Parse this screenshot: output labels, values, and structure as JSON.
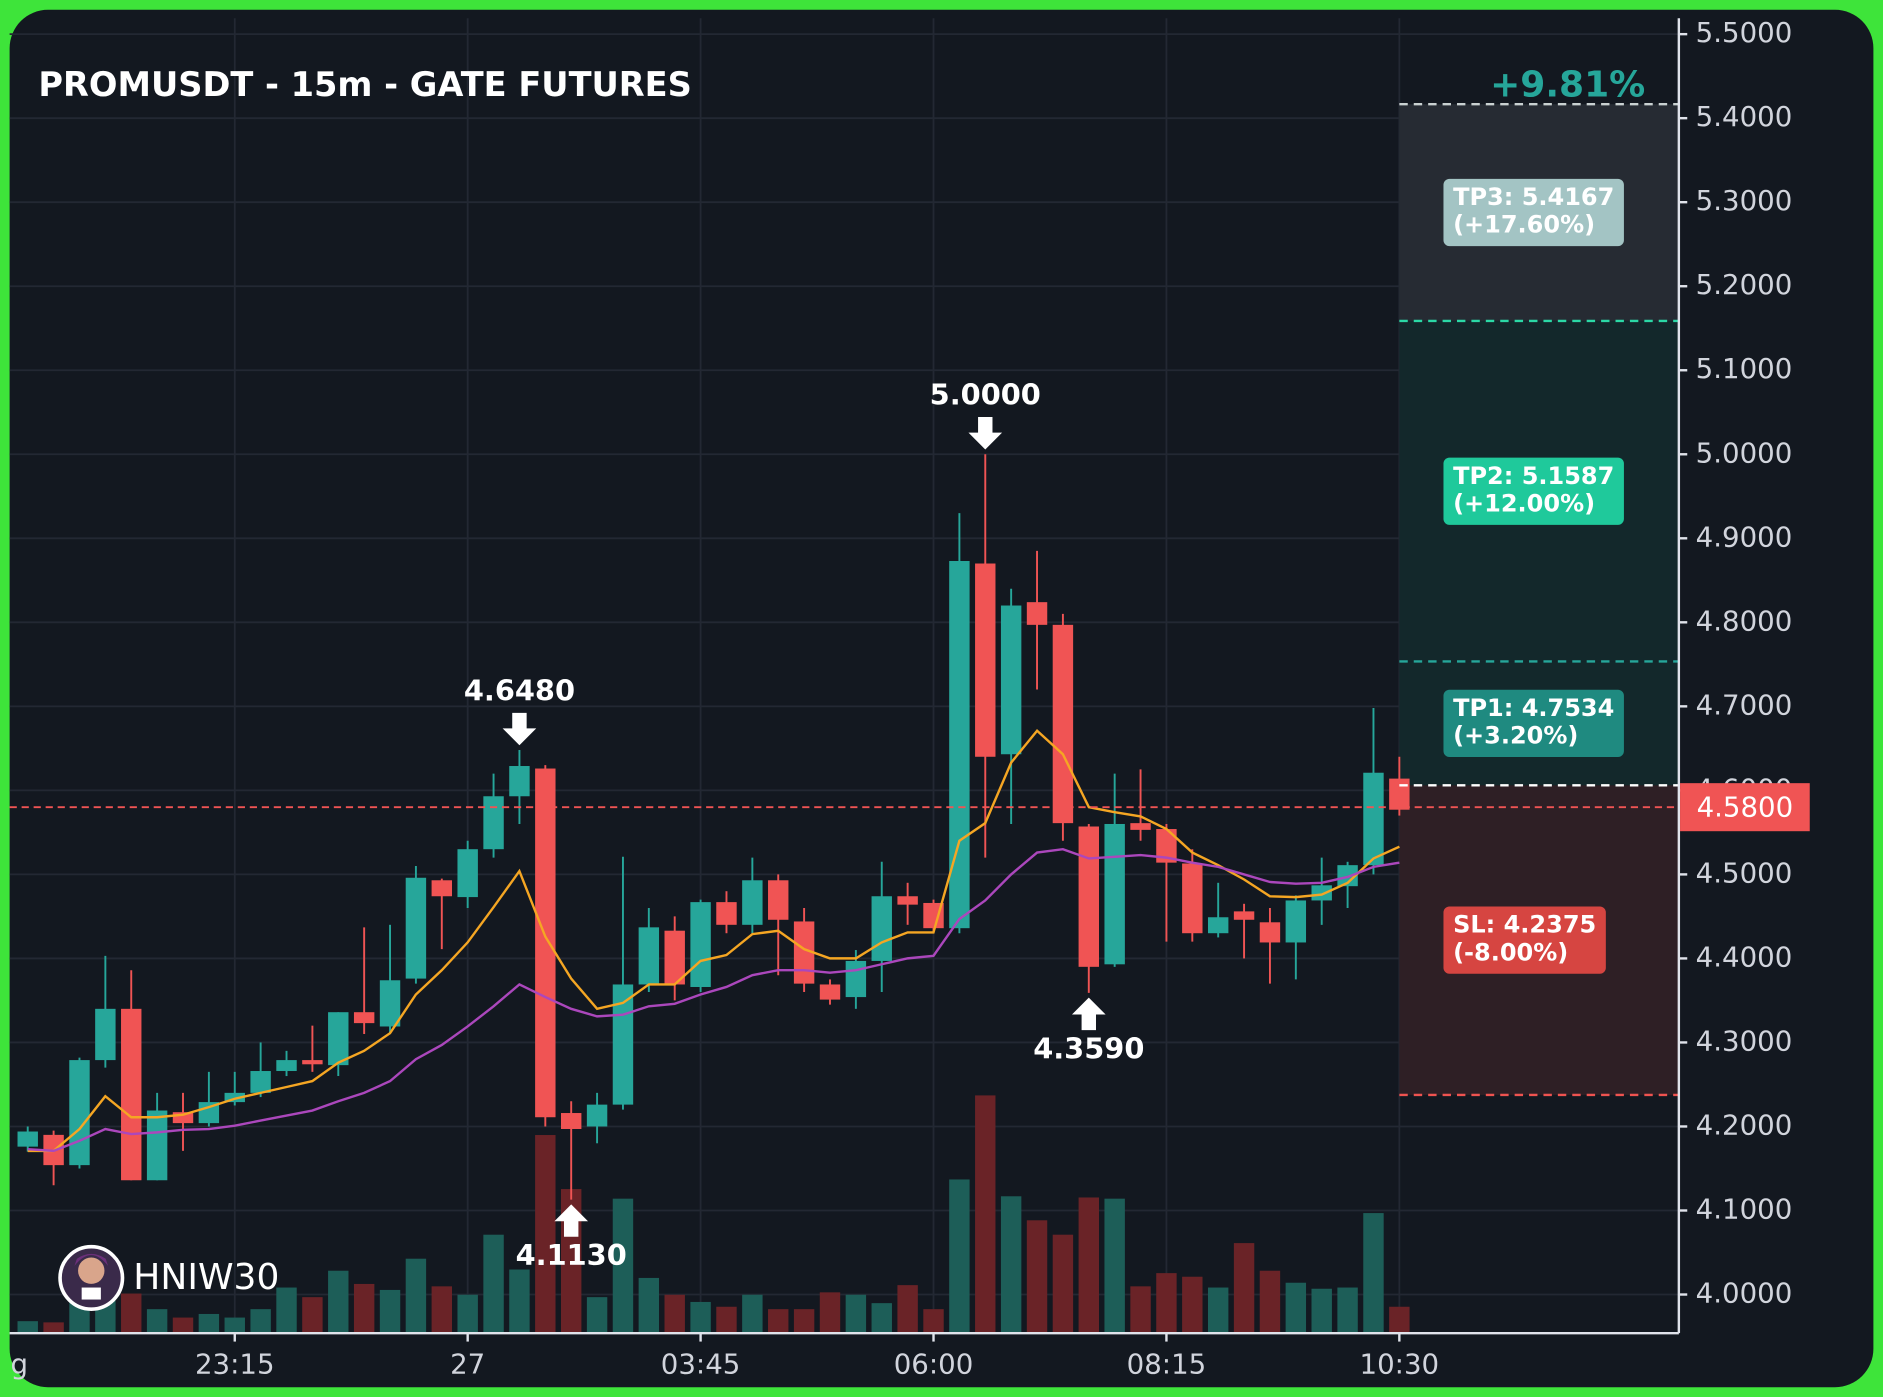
{
  "chart_data": {
    "type": "candlestick",
    "title": "PROMUSDT - 15m - GATE FUTURES",
    "watermark": "HNIW30",
    "up_color": "#26a69a",
    "down_color": "#f05454",
    "volume_up_color": "#1d5e58",
    "volume_down_color": "#6a2327",
    "open": [
      4.176,
      4.19,
      4.154,
      4.279,
      4.34,
      4.136,
      4.217,
      4.204,
      4.229,
      4.24,
      4.266,
      4.279,
      4.273,
      4.336,
      4.319,
      4.376,
      4.493,
      4.473,
      4.53,
      4.593,
      4.626,
      4.216,
      4.2,
      4.226,
      4.369,
      4.433,
      4.366,
      4.467,
      4.44,
      4.493,
      4.444,
      4.369,
      4.354,
      4.397,
      4.474,
      4.466,
      4.436,
      4.87,
      4.643,
      4.824,
      4.797,
      4.557,
      4.393,
      4.561,
      4.554,
      4.513,
      4.43,
      4.456,
      4.443,
      4.419,
      4.469,
      4.486,
      4.511,
      4.614
    ],
    "high": [
      4.2,
      4.195,
      4.282,
      4.403,
      4.386,
      4.24,
      4.24,
      4.265,
      4.265,
      4.3,
      4.29,
      4.32,
      4.336,
      4.437,
      4.44,
      4.51,
      4.495,
      4.54,
      4.62,
      4.648,
      4.63,
      4.23,
      4.24,
      4.521,
      4.46,
      4.45,
      4.47,
      4.48,
      4.52,
      4.5,
      4.46,
      4.375,
      4.41,
      4.515,
      4.49,
      4.47,
      4.93,
      5.0,
      4.84,
      4.885,
      4.81,
      4.56,
      4.62,
      4.625,
      4.56,
      4.53,
      4.49,
      4.465,
      4.46,
      4.475,
      4.52,
      4.515,
      4.698,
      4.64
    ],
    "low": [
      4.17,
      4.13,
      4.15,
      4.27,
      4.136,
      4.136,
      4.171,
      4.2,
      4.225,
      4.235,
      4.26,
      4.265,
      4.26,
      4.31,
      4.31,
      4.37,
      4.411,
      4.46,
      4.52,
      4.56,
      4.2,
      4.113,
      4.18,
      4.22,
      4.36,
      4.35,
      4.36,
      4.43,
      4.43,
      4.38,
      4.36,
      4.345,
      4.34,
      4.36,
      4.44,
      4.43,
      4.43,
      4.52,
      4.56,
      4.72,
      4.54,
      4.359,
      4.39,
      4.54,
      4.42,
      4.42,
      4.425,
      4.4,
      4.37,
      4.375,
      4.44,
      4.46,
      4.5,
      4.57
    ],
    "close": [
      4.194,
      4.154,
      4.279,
      4.34,
      4.136,
      4.219,
      4.204,
      4.229,
      4.24,
      4.266,
      4.279,
      4.274,
      4.336,
      4.323,
      4.374,
      4.496,
      4.474,
      4.53,
      4.593,
      4.629,
      4.211,
      4.197,
      4.226,
      4.369,
      4.437,
      4.369,
      4.467,
      4.44,
      4.493,
      4.446,
      4.37,
      4.351,
      4.397,
      4.474,
      4.464,
      4.436,
      4.873,
      4.64,
      4.82,
      4.797,
      4.561,
      4.39,
      4.56,
      4.553,
      4.514,
      4.43,
      4.449,
      4.446,
      4.419,
      4.469,
      4.487,
      4.511,
      4.621,
      4.577
    ],
    "volume": [
      10,
      9,
      30,
      30,
      33,
      20,
      13,
      16,
      13,
      20,
      38,
      30,
      52,
      41,
      36,
      62,
      39,
      32,
      82,
      53,
      165,
      120,
      30,
      112,
      46,
      32,
      26,
      22,
      32,
      20,
      20,
      34,
      32,
      25,
      40,
      20,
      128,
      198,
      114,
      94,
      82,
      113,
      112,
      39,
      50,
      47,
      38,
      75,
      52,
      42,
      37,
      38,
      100,
      22
    ],
    "volume_ylim": [
      0,
      1095
    ],
    "ma": [
      {
        "color": "#f5a623",
        "values": [
          4.171,
          4.171,
          4.197,
          4.236,
          4.211,
          4.211,
          4.214,
          4.223,
          4.233,
          4.24,
          4.247,
          4.254,
          4.276,
          4.29,
          4.311,
          4.357,
          4.386,
          4.419,
          4.461,
          4.504,
          4.426,
          4.376,
          4.34,
          4.347,
          4.369,
          4.369,
          4.397,
          4.404,
          4.429,
          4.433,
          4.411,
          4.4,
          4.4,
          4.419,
          4.431,
          4.431,
          4.54,
          4.561,
          4.633,
          4.671,
          4.643,
          4.58,
          4.574,
          4.569,
          4.554,
          4.526,
          4.511,
          4.494,
          4.474,
          4.473,
          4.476,
          4.49,
          4.519,
          4.533
        ]
      },
      {
        "color": "#ab47bc",
        "values": [
          4.173,
          4.171,
          4.183,
          4.197,
          4.191,
          4.193,
          4.196,
          4.197,
          4.201,
          4.207,
          4.213,
          4.219,
          4.23,
          4.24,
          4.254,
          4.28,
          4.297,
          4.319,
          4.343,
          4.369,
          4.354,
          4.34,
          4.331,
          4.333,
          4.343,
          4.346,
          4.357,
          4.366,
          4.38,
          4.386,
          4.386,
          4.383,
          4.386,
          4.393,
          4.4,
          4.403,
          4.447,
          4.469,
          4.5,
          4.526,
          4.53,
          4.519,
          4.521,
          4.523,
          4.52,
          4.514,
          4.509,
          4.5,
          4.491,
          4.489,
          4.49,
          4.497,
          4.509,
          4.514
        ]
      }
    ],
    "annotations": [
      {
        "at": 19,
        "kind": "high",
        "value": 4.648,
        "label": "4.6480"
      },
      {
        "at": 21,
        "kind": "low",
        "value": 4.113,
        "label": "4.1130"
      },
      {
        "at": 37,
        "kind": "high",
        "value": 5.0,
        "label": "5.0000"
      },
      {
        "at": 41,
        "kind": "low",
        "value": 4.359,
        "label": "4.3590"
      }
    ],
    "last_price": {
      "value": 4.58,
      "label": "4.5800",
      "color": "#f05454"
    },
    "entry": 4.606,
    "levels": [
      {
        "label": "TP3: 5.4167",
        "change": "(+17.60%)",
        "value": 5.4167,
        "color": "#a3c4c4",
        "line": "#c9d1d1",
        "zone_color": "#262b33"
      },
      {
        "label": "TP2: 5.1587",
        "change": "(+12.00%)",
        "value": 5.1587,
        "color": "#1fc99b",
        "line": "#2bd9a6",
        "zone_color": "#13282b"
      },
      {
        "label": "TP1: 4.7534",
        "change": "(+3.20%)",
        "value": 4.7534,
        "color": "#1f8a80",
        "line": "#26a69a",
        "zone_color": "#13282b"
      },
      {
        "label": "SL: 4.2375",
        "change": "(-8.00%)",
        "value": 4.2375,
        "color": "#d64541",
        "line": "#ef5350",
        "zone_color": "#2e1f25",
        "from_entry": true
      }
    ],
    "pnl": "+9.81%",
    "xlim": [
      -0.7,
      63.8
    ],
    "xticks": [
      {
        "value": -1,
        "label": "g"
      },
      {
        "value": 8,
        "label": "23:15"
      },
      {
        "value": 17,
        "label": "27"
      },
      {
        "value": 26,
        "label": "03:45"
      },
      {
        "value": 35,
        "label": "06:00"
      },
      {
        "value": 44,
        "label": "08:15"
      },
      {
        "value": 53,
        "label": "10:30"
      }
    ],
    "ylim": [
      3.954,
      5.519
    ],
    "yticks": [
      {
        "value": 5.5,
        "label": "5.5000"
      },
      {
        "value": 5.4,
        "label": "5.4000"
      },
      {
        "value": 5.3,
        "label": "5.3000"
      },
      {
        "value": 5.2,
        "label": "5.2000"
      },
      {
        "value": 5.1,
        "label": "5.1000"
      },
      {
        "value": 5.0,
        "label": "5.0000"
      },
      {
        "value": 4.9,
        "label": "4.9000"
      },
      {
        "value": 4.8,
        "label": "4.8000"
      },
      {
        "value": 4.7,
        "label": "4.7000"
      },
      {
        "value": 4.6,
        "label": "4.6000"
      },
      {
        "value": 4.5,
        "label": "4.5000"
      },
      {
        "value": 4.4,
        "label": "4.4000"
      },
      {
        "value": 4.3,
        "label": "4.3000"
      },
      {
        "value": 4.2,
        "label": "4.2000"
      },
      {
        "value": 4.1,
        "label": "4.1000"
      },
      {
        "value": 4.0,
        "label": "4.0000"
      }
    ],
    "grid": true
  }
}
